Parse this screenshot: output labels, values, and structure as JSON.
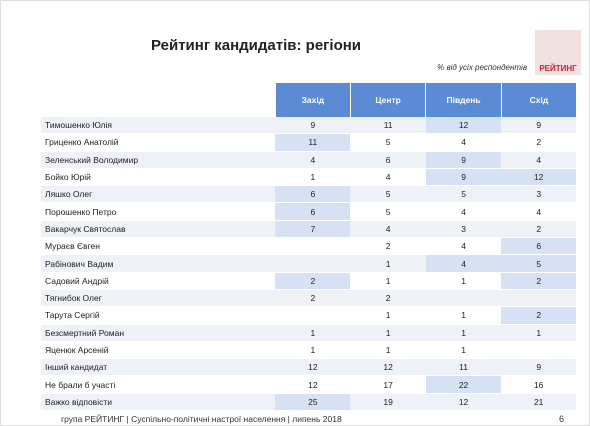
{
  "header": {
    "title": "Рейтинг кандидатів: регіони",
    "subtitle": "% від усіх респондентів",
    "logo": "РЕЙТИНГ"
  },
  "table": {
    "columns": [
      "Захід",
      "Центр",
      "Південь",
      "Схід"
    ],
    "rows": [
      [
        "Тимошенко Юлія",
        9,
        11,
        12,
        9
      ],
      [
        "Гриценко Анатолій",
        11,
        5,
        4,
        2
      ],
      [
        "Зеленський Володимир",
        4,
        6,
        9,
        4
      ],
      [
        "Бойко Юрій",
        1,
        4,
        9,
        12
      ],
      [
        "Ляшко Олег",
        6,
        5,
        5,
        3
      ],
      [
        "Порошенко Петро",
        6,
        5,
        4,
        4
      ],
      [
        "Вакарчук Святослав",
        7,
        4,
        3,
        2
      ],
      [
        "Мураєв Євген",
        null,
        2,
        4,
        6
      ],
      [
        "Рабінович Вадим",
        null,
        1,
        4,
        5
      ],
      [
        "Садовий Андрій",
        2,
        1,
        1,
        2
      ],
      [
        "Тягнибок Олег",
        2,
        2,
        null,
        null
      ],
      [
        "Тарута Сергій",
        null,
        1,
        1,
        2
      ],
      [
        "Безсмертний Роман",
        1,
        1,
        1,
        1
      ],
      [
        "Яценюк Арсеній",
        1,
        1,
        1,
        null
      ],
      [
        "Інший кандидат",
        12,
        12,
        11,
        9
      ],
      [
        "Не брали б участі",
        12,
        17,
        22,
        16
      ],
      [
        "Важко відповісти",
        25,
        19,
        12,
        21
      ]
    ]
  },
  "footer": {
    "text": "група РЕЙТИНГ | Суспільно-політичні настрої населення | липень 2018",
    "page": "6"
  }
}
